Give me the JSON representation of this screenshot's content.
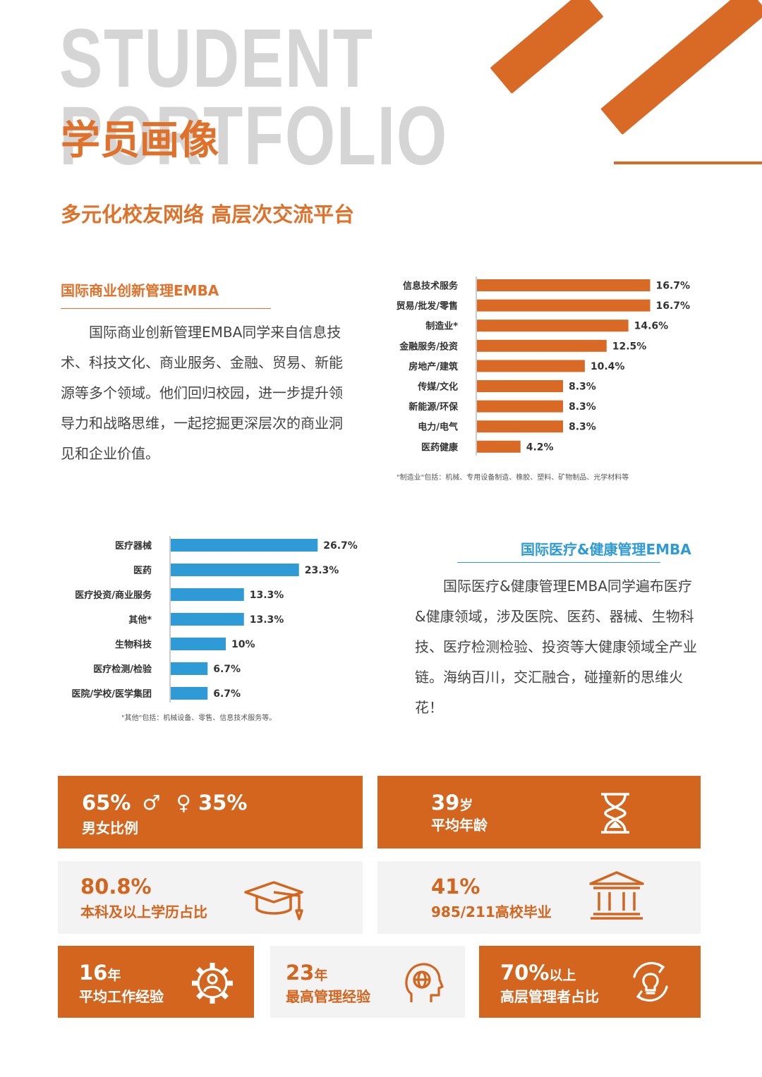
{
  "header": {
    "bg_line1": "STUDENT",
    "bg_line2": "PORTFOLIO",
    "title": "学员画像",
    "subtitle": "多元化校友网络 高层次交流平台"
  },
  "colors": {
    "orange": "#d96a26",
    "blue": "#2e9bd6",
    "grey": "#d5d5d5"
  },
  "emba1": {
    "heading": "国际商业创新管理EMBA",
    "paragraph": "国际商业创新管理EMBA同学来自信息技术、科技文化、商业服务、金融、贸易、新能源等多个领域。他们回归校园，进一步提升领导力和战略思维，一起挖掘更深层次的商业洞见和企业价值。",
    "footnote": "\"制造业\"包括：机械、专用设备制造、橡胶、塑料、矿物制品、光学材料等"
  },
  "emba2": {
    "heading": "国际医疗&健康管理EMBA",
    "paragraph": "国际医疗&健康管理EMBA同学遍布医疗&健康领域，涉及医院、医药、器械、生物科技、医疗检测检验、投资等大健康领域全产业链。海纳百川，交汇融合，碰撞新的思维火花！",
    "footnote": "\"其他\"包括：机械设备、零售、信息技术服务等。"
  },
  "chart_data": [
    {
      "type": "bar",
      "orientation": "horizontal",
      "color": "#d96a26",
      "categories": [
        "信息技术服务",
        "贸易/批发/零售",
        "制造业*",
        "金融服务/投资",
        "房地产/建筑",
        "传媒/文化",
        "新能源/环保",
        "电力/电气",
        "医药健康"
      ],
      "values": [
        16.7,
        16.7,
        14.6,
        12.5,
        10.4,
        8.3,
        8.3,
        8.3,
        4.2
      ],
      "labels": [
        "16.7%",
        "16.7%",
        "14.6%",
        "12.5%",
        "10.4%",
        "8.3%",
        "8.3%",
        "8.3%",
        "4.2%"
      ],
      "unit": "%"
    },
    {
      "type": "bar",
      "orientation": "horizontal",
      "color": "#2e9bd6",
      "categories": [
        "医疗器械",
        "医药",
        "医疗投资/商业服务",
        "其他*",
        "生物科技",
        "医疗检测/检验",
        "医院/学校/医学集团"
      ],
      "values": [
        26.7,
        23.3,
        13.3,
        13.3,
        10,
        6.7,
        6.7
      ],
      "labels": [
        "26.7%",
        "23.3%",
        "13.3%",
        "13.3%",
        "10%",
        "6.7%",
        "6.7%"
      ],
      "unit": "%"
    }
  ],
  "stats": {
    "gender": {
      "male": "65%",
      "male_symbol": "♂",
      "female_symbol": "♀",
      "female": "35%",
      "label": "男女比例"
    },
    "age": {
      "value": "39",
      "unit": "岁",
      "label": "平均年龄"
    },
    "degree": {
      "value": "80.8%",
      "label": "本科及以上学历占比"
    },
    "university": {
      "value": "41%",
      "label": "985/211高校毕业"
    },
    "work": {
      "value": "16",
      "unit": "年",
      "label": "平均工作经验"
    },
    "mgmt": {
      "value": "23",
      "unit": "年",
      "label": "最高管理经验"
    },
    "senior": {
      "value": "70%",
      "unit": "以上",
      "label": "高层管理者占比"
    }
  },
  "icons": [
    "hourglass-icon",
    "graduation-cap-icon",
    "columns-building-icon",
    "gear-person-icon",
    "head-globe-icon",
    "cycle-lightbulb-icon"
  ]
}
